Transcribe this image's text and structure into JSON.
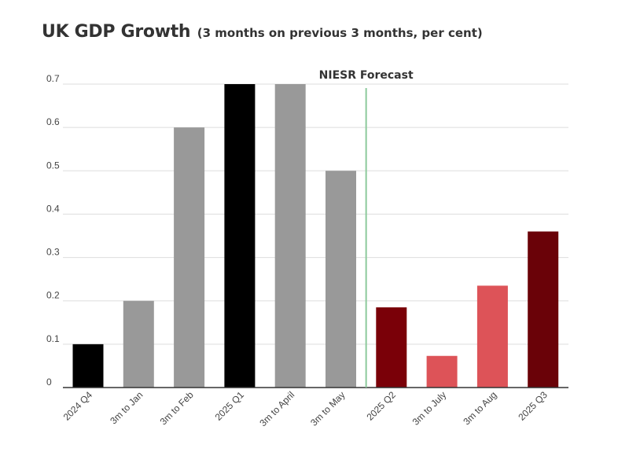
{
  "chart_data": {
    "type": "bar",
    "title": "UK GDP Growth",
    "subtitle": "(3 months on previous 3 months, per cent)",
    "xlabel": "",
    "ylabel": "",
    "ylim": [
      0,
      0.7
    ],
    "y_ticks": [
      "0",
      "0.1",
      "0.2",
      "0.3",
      "0.4",
      "0.5",
      "0.6",
      "0.7"
    ],
    "y_tick_values": [
      0,
      0.1,
      0.2,
      0.3,
      0.4,
      0.5,
      0.6,
      0.7
    ],
    "grid": true,
    "legend": "none",
    "categories": [
      "2024 Q4",
      "3m to Jan",
      "3m to Feb",
      "2025 Q1",
      "3m to April",
      "3m to May",
      "2025 Q2",
      "3m to July",
      "3m to Aug",
      "2025 Q3"
    ],
    "values": [
      0.1,
      0.2,
      0.6,
      0.7,
      0.7,
      0.5,
      0.185,
      0.073,
      0.235,
      0.36
    ],
    "colors": [
      "#000000",
      "#999999",
      "#999999",
      "#000000",
      "#999999",
      "#999999",
      "#7a0008",
      "#dd5358",
      "#dd5358",
      "#6a0208"
    ],
    "forecast_label": "NIESR Forecast",
    "forecast_line_color": "#8cc99b",
    "forecast_starts_after": "3m to May"
  }
}
